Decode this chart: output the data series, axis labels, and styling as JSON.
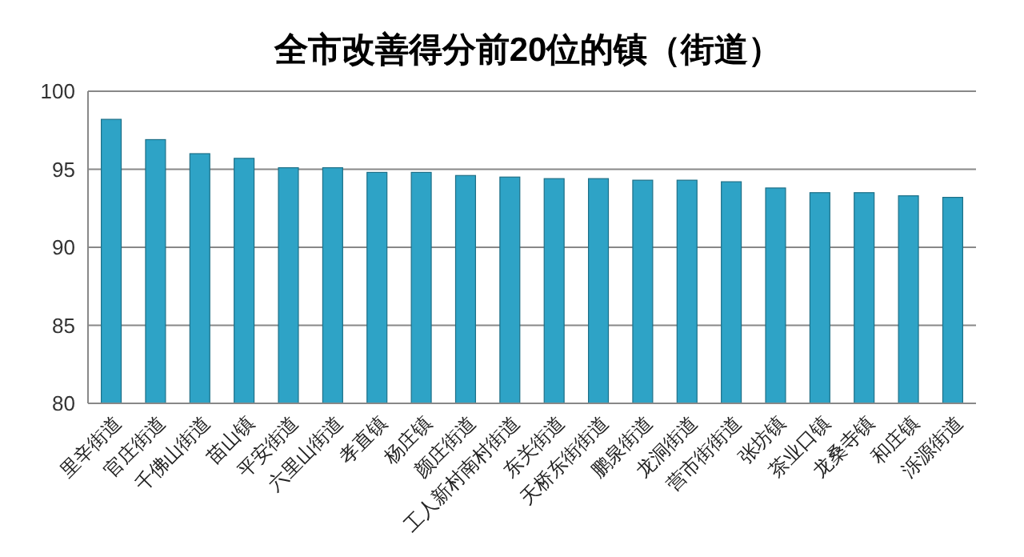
{
  "chart_data": {
    "type": "bar",
    "title": "全市改善得分前20位的镇（街道）",
    "categories": [
      "里辛街道",
      "官庄街道",
      "千佛山街道",
      "苗山镇",
      "平安街道",
      "六里山街道",
      "孝直镇",
      "杨庄镇",
      "颜庄街道",
      "工人新村南村街道",
      "东关街道",
      "天桥东街街道",
      "鹏泉街道",
      "龙洞街道",
      "营市街街道",
      "张坊镇",
      "茶业口镇",
      "龙桑寺镇",
      "和庄镇",
      "泺源街道"
    ],
    "values": [
      98.2,
      96.9,
      96.0,
      95.7,
      95.1,
      95.1,
      94.8,
      94.8,
      94.6,
      94.5,
      94.4,
      94.4,
      94.3,
      94.3,
      94.2,
      93.8,
      93.5,
      93.5,
      93.3,
      93.2
    ],
    "color": "#2ea3c6",
    "ylim": [
      80,
      100
    ],
    "yticks": [
      80,
      85,
      90,
      95,
      100
    ],
    "grid": "y"
  }
}
